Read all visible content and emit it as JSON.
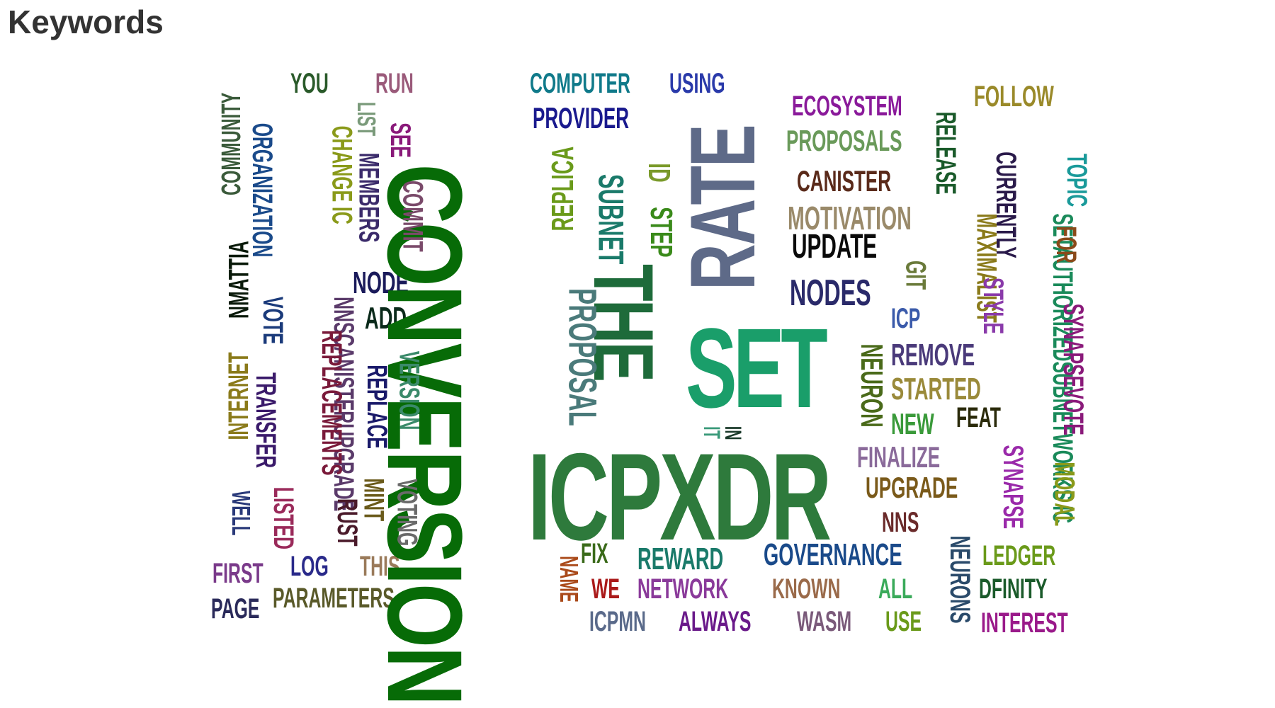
{
  "heading": "Keywords",
  "words": [
    {
      "text": "CONVERSION",
      "color": "#076b07"
    },
    {
      "text": "ICPXDR",
      "color": "#2e7a3c"
    },
    {
      "text": "RATE",
      "color": "#5e6a88"
    },
    {
      "text": "SET",
      "color": "#1a9e6a"
    },
    {
      "text": "THE",
      "color": "#1e6b3a"
    },
    {
      "text": "COMPUTER",
      "color": "#107a8a"
    },
    {
      "text": "USING",
      "color": "#2a3aaa"
    },
    {
      "text": "PROVIDER",
      "color": "#1a1a8e"
    },
    {
      "text": "ECOSYSTEM",
      "color": "#8a1a9a"
    },
    {
      "text": "FOLLOW",
      "color": "#9a8a2a"
    },
    {
      "text": "PROPOSALS",
      "color": "#6a9a5a"
    },
    {
      "text": "CANISTER",
      "color": "#5a2a1a"
    },
    {
      "text": "MOTIVATION",
      "color": "#9a8a6a"
    },
    {
      "text": "UPDATE",
      "color": "#0a0a0a"
    },
    {
      "text": "NODES",
      "color": "#2a2a6a"
    },
    {
      "text": "ICP",
      "color": "#3a5aaa"
    },
    {
      "text": "REMOVE",
      "color": "#4a3a7a"
    },
    {
      "text": "STARTED",
      "color": "#9a8a3a"
    },
    {
      "text": "NEW",
      "color": "#3a9a3a"
    },
    {
      "text": "FEAT",
      "color": "#2a2a0a"
    },
    {
      "text": "FINALIZE",
      "color": "#8a6a9a"
    },
    {
      "text": "UPGRADE",
      "color": "#7a5a1a"
    },
    {
      "text": "NNS",
      "color": "#6a2a2a"
    },
    {
      "text": "LEDGER",
      "color": "#6a9a1a"
    },
    {
      "text": "DFINITY",
      "color": "#1a5a2a"
    },
    {
      "text": "INTEREST",
      "color": "#9a1a8a"
    },
    {
      "text": "GOVERNANCE",
      "color": "#1a4a8a"
    },
    {
      "text": "REWARD",
      "color": "#1a7a6a"
    },
    {
      "text": "FIX",
      "color": "#3a6a1a"
    },
    {
      "text": "WE",
      "color": "#aa1a1a"
    },
    {
      "text": "NETWORK",
      "color": "#8a3a9a"
    },
    {
      "text": "KNOWN",
      "color": "#9a6a4a"
    },
    {
      "text": "ALL",
      "color": "#3aaa5a"
    },
    {
      "text": "ICPMN",
      "color": "#5a6a8a"
    },
    {
      "text": "ALWAYS",
      "color": "#6a1a8a"
    },
    {
      "text": "WASM",
      "color": "#7a5a7a"
    },
    {
      "text": "USE",
      "color": "#6a9a1a"
    },
    {
      "text": "YOU",
      "color": "#2a5a2a"
    },
    {
      "text": "RUN",
      "color": "#9a5a7a"
    },
    {
      "text": "NODE",
      "color": "#1a1a5a"
    },
    {
      "text": "ADD",
      "color": "#0a2a1a"
    },
    {
      "text": "FIRST",
      "color": "#7a3a8a"
    },
    {
      "text": "PAGE",
      "color": "#2a2a5a"
    },
    {
      "text": "LOG",
      "color": "#2a2a8a"
    },
    {
      "text": "THIS",
      "color": "#9a7a5a"
    },
    {
      "text": "PARAMETERS",
      "color": "#5a5a2a"
    },
    {
      "text": "COMMUNITY",
      "color": "#3a5a3a"
    },
    {
      "text": "ORGANIZATION",
      "color": "#1a4a8a"
    },
    {
      "text": "CHANGE IC",
      "color": "#8a9a1a"
    },
    {
      "text": "LIST",
      "color": "#7a9a7a"
    },
    {
      "text": "MEMBERS",
      "color": "#3a2a6a"
    },
    {
      "text": "SEE",
      "color": "#8a1a7a"
    },
    {
      "text": "COMMIT",
      "color": "#7a4a6a"
    },
    {
      "text": "NMATTIA",
      "color": "#0a1a0a"
    },
    {
      "text": "VOTE",
      "color": "#1a3a7a"
    },
    {
      "text": "NNSCANISTERUPGRADE",
      "color": "#5a3a6a"
    },
    {
      "text": "REPLACEMENTS",
      "color": "#7a1a3a"
    },
    {
      "text": "TRANSFER",
      "color": "#3a1a6a"
    },
    {
      "text": "INTERNET",
      "color": "#8a7a1a"
    },
    {
      "text": "REPLACE",
      "color": "#1a1a6a"
    },
    {
      "text": "VERSION",
      "color": "#3a8a6a"
    },
    {
      "text": "VOTING",
      "color": "#6a6a6a"
    },
    {
      "text": "MINT",
      "color": "#6a5a1a"
    },
    {
      "text": "RUST",
      "color": "#4a1a2a"
    },
    {
      "text": "LISTED",
      "color": "#9a2a5a"
    },
    {
      "text": "WELL",
      "color": "#2a3a7a"
    },
    {
      "text": "REPLICA",
      "color": "#6a9a1a"
    },
    {
      "text": "PROPOSAL",
      "color": "#4a7a7a"
    },
    {
      "text": "SUBNET",
      "color": "#1a7a6a"
    },
    {
      "text": "ID",
      "color": "#7a9a2a"
    },
    {
      "text": "STEP",
      "color": "#3a8a1a"
    },
    {
      "text": "NAME",
      "color": "#aa4a1a"
    },
    {
      "text": "IT",
      "color": "#3a9a7a"
    },
    {
      "text": "IN",
      "color": "#1a3a2a"
    },
    {
      "text": "GIT",
      "color": "#6a7a3a"
    },
    {
      "text": "NEURON",
      "color": "#4a6a1a"
    },
    {
      "text": "RELEASE",
      "color": "#1a5a2a"
    },
    {
      "text": "MAXIMALIST",
      "color": "#8a7a1a"
    },
    {
      "text": "CURRENTLY",
      "color": "#2a1a4a"
    },
    {
      "text": "STYLE",
      "color": "#8a3aaa"
    },
    {
      "text": "SETAUTHORIZEDSUBNETWORKS IC",
      "color": "#1a8a5a"
    },
    {
      "text": "TOPIC",
      "color": "#1a9a9a"
    },
    {
      "text": "FOR",
      "color": "#8a4a1a"
    },
    {
      "text": "SYNAPSEVOTE",
      "color": "#8a1a7a"
    },
    {
      "text": "MODAL",
      "color": "#8a9a1a"
    },
    {
      "text": "SYNAPSE",
      "color": "#9a2aaa"
    },
    {
      "text": "NEURONS",
      "color": "#2a4a6a"
    }
  ]
}
